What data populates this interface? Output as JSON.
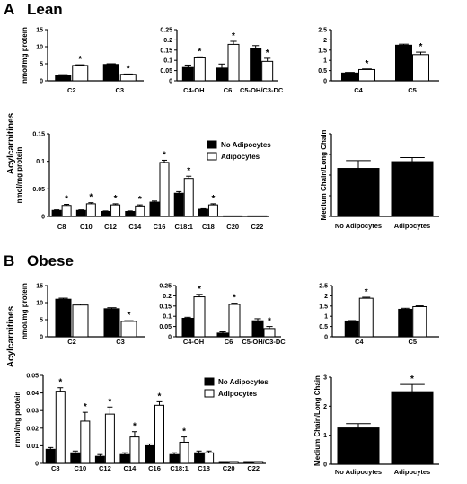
{
  "figure": {
    "section_a": {
      "letter": "A",
      "title": "Lean"
    },
    "section_b": {
      "letter": "B",
      "title": "Obese"
    },
    "shared_ylabel": "Acylcarnitines",
    "legend": [
      "No Adipocytes",
      "Adipocytes"
    ],
    "colors": {
      "no_adipocytes": "#000000",
      "adipocytes": "#ffffff"
    }
  },
  "chart_data": [
    {
      "id": "lean_c2_c3",
      "type": "bar",
      "ylabel": "nmol/mg protein",
      "ylim": [
        0,
        15
      ],
      "yticks": [
        0,
        5,
        10,
        15
      ],
      "decimals": 0,
      "categories": [
        "C2",
        "C3"
      ],
      "series": [
        {
          "name": "No Adipocytes",
          "values": [
            1.7,
            4.8
          ],
          "errors": [
            0.1,
            0.2
          ]
        },
        {
          "name": "Adipocytes",
          "values": [
            4.5,
            1.9
          ],
          "errors": [
            0.2,
            0.1
          ]
        }
      ],
      "significant": [
        [
          false,
          true
        ],
        [
          false,
          true
        ]
      ]
    },
    {
      "id": "lean_c4oh_c6_c5oh",
      "type": "bar",
      "ylabel": "",
      "ylim": [
        0,
        0.25
      ],
      "yticks": [
        0,
        0.05,
        0.1,
        0.15,
        0.2,
        0.25
      ],
      "decimals": 2,
      "categories": [
        "C4-OH",
        "C6",
        "C5-OH/C3-DC"
      ],
      "series": [
        {
          "name": "No Adipocytes",
          "values": [
            0.065,
            0.062,
            0.16
          ],
          "errors": [
            0.012,
            0.02,
            0.012
          ]
        },
        {
          "name": "Adipocytes",
          "values": [
            0.112,
            0.178,
            0.095
          ],
          "errors": [
            0.005,
            0.015,
            0.015
          ]
        }
      ],
      "significant": [
        [
          false,
          true
        ],
        [
          false,
          true
        ],
        [
          false,
          true
        ]
      ]
    },
    {
      "id": "lean_c4_c5",
      "type": "bar",
      "ylabel": "",
      "ylim": [
        0,
        2.5
      ],
      "yticks": [
        0,
        0.5,
        1,
        1.5,
        2,
        2.5
      ],
      "decimals": 1,
      "categories": [
        "C4",
        "C5"
      ],
      "series": [
        {
          "name": "No Adipocytes",
          "values": [
            0.38,
            1.74
          ],
          "errors": [
            0.03,
            0.05
          ]
        },
        {
          "name": "Adipocytes",
          "values": [
            0.55,
            1.28
          ],
          "errors": [
            0.03,
            0.12
          ]
        }
      ],
      "significant": [
        [
          false,
          true
        ],
        [
          false,
          true
        ]
      ]
    },
    {
      "id": "lean_long_chain",
      "type": "bar",
      "ylabel": "nmol/mg protein",
      "ylim": [
        0,
        0.15
      ],
      "yticks": [
        0,
        0.05,
        0.1,
        0.15
      ],
      "decimals": 2,
      "categories": [
        "C8",
        "C10",
        "C12",
        "C14",
        "C16",
        "C18:1",
        "C18",
        "C20",
        "C22"
      ],
      "series": [
        {
          "name": "No Adipocytes",
          "values": [
            0.011,
            0.011,
            0.009,
            0.009,
            0.026,
            0.042,
            0.013,
            0.001,
            0.001
          ],
          "errors": [
            0.001,
            0.001,
            0.001,
            0.001,
            0.002,
            0.003,
            0.001,
            0.0,
            0.0
          ]
        },
        {
          "name": "Adipocytes",
          "values": [
            0.02,
            0.023,
            0.021,
            0.019,
            0.098,
            0.069,
            0.021,
            0.001,
            0.001
          ],
          "errors": [
            0.002,
            0.002,
            0.002,
            0.002,
            0.004,
            0.004,
            0.002,
            0.0,
            0.0
          ]
        }
      ],
      "significant": [
        [
          false,
          true
        ],
        [
          false,
          true
        ],
        [
          false,
          true
        ],
        [
          false,
          true
        ],
        [
          false,
          true
        ],
        [
          false,
          true
        ],
        [
          false,
          true
        ],
        [
          false,
          false
        ],
        [
          false,
          false
        ]
      ]
    },
    {
      "id": "lean_ratio",
      "type": "bar",
      "ylabel": "Medium Chain/Long Chain",
      "ylim": [
        0,
        1.6
      ],
      "yticks": [],
      "decimals": 1,
      "categories": [
        "No Adipocytes",
        "Adipocytes"
      ],
      "series": [
        {
          "name": "Medium Chain/Long Chain",
          "values": [
            0.93,
            1.06
          ],
          "errors": [
            0.15,
            0.08
          ]
        }
      ],
      "significant": [
        [
          false
        ],
        [
          false
        ]
      ]
    },
    {
      "id": "obese_c2_c3",
      "type": "bar",
      "ylabel": "nmol/mg protein",
      "ylim": [
        0,
        15
      ],
      "yticks": [
        0,
        5,
        10,
        15
      ],
      "decimals": 0,
      "categories": [
        "C2",
        "C3"
      ],
      "series": [
        {
          "name": "No Adipocytes",
          "values": [
            11.0,
            8.2
          ],
          "errors": [
            0.3,
            0.3
          ]
        },
        {
          "name": "Adipocytes",
          "values": [
            9.3,
            4.5
          ],
          "errors": [
            0.3,
            0.2
          ]
        }
      ],
      "significant": [
        [
          false,
          false
        ],
        [
          false,
          true
        ]
      ]
    },
    {
      "id": "obese_c4oh_c6_c5oh",
      "type": "bar",
      "ylabel": "",
      "ylim": [
        0,
        0.25
      ],
      "yticks": [
        0,
        0.05,
        0.1,
        0.15,
        0.2,
        0.25
      ],
      "decimals": 2,
      "categories": [
        "C4-OH",
        "C6",
        "C5-OH/C3-DC"
      ],
      "series": [
        {
          "name": "No Adipocytes",
          "values": [
            0.09,
            0.018,
            0.078
          ],
          "errors": [
            0.005,
            0.006,
            0.01
          ]
        },
        {
          "name": "Adipocytes",
          "values": [
            0.195,
            0.158,
            0.04
          ],
          "errors": [
            0.012,
            0.006,
            0.01
          ]
        }
      ],
      "significant": [
        [
          false,
          true
        ],
        [
          false,
          true
        ],
        [
          false,
          true
        ]
      ]
    },
    {
      "id": "obese_c4_c5",
      "type": "bar",
      "ylabel": "",
      "ylim": [
        0,
        2.5
      ],
      "yticks": [
        0,
        0.5,
        1,
        1.5,
        2,
        2.5
      ],
      "decimals": 1,
      "categories": [
        "C4",
        "C5"
      ],
      "series": [
        {
          "name": "No Adipocytes",
          "values": [
            0.77,
            1.34
          ],
          "errors": [
            0.02,
            0.05
          ]
        },
        {
          "name": "Adipocytes",
          "values": [
            1.88,
            1.47
          ],
          "errors": [
            0.05,
            0.04
          ]
        }
      ],
      "significant": [
        [
          false,
          true
        ],
        [
          false,
          false
        ]
      ]
    },
    {
      "id": "obese_long_chain",
      "type": "bar",
      "ylabel": "nmol/mg protein",
      "ylim": [
        0,
        0.05
      ],
      "yticks": [
        0,
        0.01,
        0.02,
        0.03,
        0.04,
        0.05
      ],
      "decimals": 2,
      "categories": [
        "C8",
        "C10",
        "C12",
        "C14",
        "C16",
        "C18:1",
        "C18",
        "C20",
        "C22"
      ],
      "series": [
        {
          "name": "No Adipocytes",
          "values": [
            0.008,
            0.006,
            0.004,
            0.005,
            0.01,
            0.005,
            0.006,
            0.001,
            0.001
          ],
          "errors": [
            0.001,
            0.001,
            0.001,
            0.001,
            0.001,
            0.001,
            0.001,
            0.0,
            0.0
          ]
        },
        {
          "name": "Adipocytes",
          "values": [
            0.041,
            0.024,
            0.028,
            0.015,
            0.033,
            0.012,
            0.006,
            0.001,
            0.001
          ],
          "errors": [
            0.002,
            0.005,
            0.004,
            0.003,
            0.002,
            0.003,
            0.001,
            0.0,
            0.0
          ]
        }
      ],
      "significant": [
        [
          false,
          true
        ],
        [
          false,
          true
        ],
        [
          false,
          true
        ],
        [
          false,
          true
        ],
        [
          false,
          true
        ],
        [
          false,
          true
        ],
        [
          false,
          false
        ],
        [
          false,
          false
        ],
        [
          false,
          false
        ]
      ]
    },
    {
      "id": "obese_ratio",
      "type": "bar",
      "ylabel": "Medium Chain/Long Chain",
      "ylim": [
        0,
        3
      ],
      "yticks": [
        0,
        1,
        2,
        3
      ],
      "decimals": 0,
      "categories": [
        "No Adipocytes",
        "Adipocytes"
      ],
      "series": [
        {
          "name": "Medium Chain/Long Chain",
          "values": [
            1.25,
            2.5
          ],
          "errors": [
            0.15,
            0.25
          ]
        }
      ],
      "significant": [
        [
          false
        ],
        [
          true
        ]
      ]
    }
  ]
}
